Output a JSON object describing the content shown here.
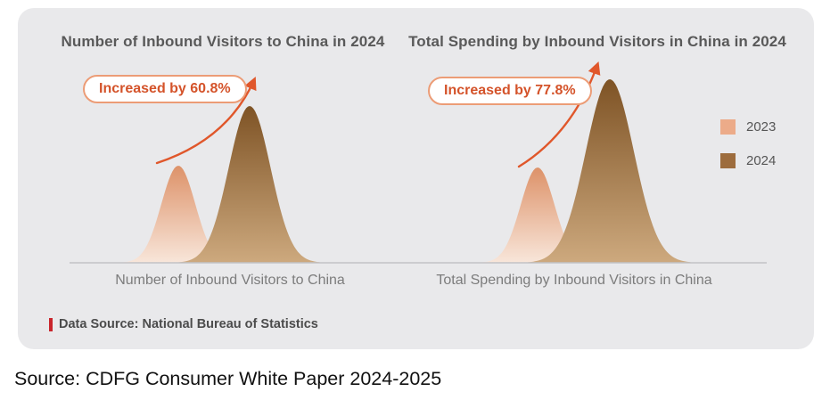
{
  "page": {
    "source_caption": "Source: CDFG Consumer White Paper 2024-2025",
    "data_source_note": "Data Source: National Bureau of Statistics"
  },
  "chart_data": {
    "type": "area",
    "description": "Two peak-shaped area comparisons of 2023 vs 2024 magnitudes; no numeric axes shown, growth given as percentage annotations",
    "grid": false,
    "y_axis": "hidden",
    "panels": [
      {
        "title": "Number of Inbound Visitors to China in 2024",
        "x_axis_label": "Number of Inbound Visitors to China",
        "annotation": "Increased by 60.8%",
        "increase_percent": 60.8,
        "series": [
          {
            "name": "2023",
            "relative_value": 1.0
          },
          {
            "name": "2024",
            "relative_value": 1.608
          }
        ]
      },
      {
        "title": "Total Spending by Inbound Visitors in China in 2024",
        "x_axis_label": "Total Spending by Inbound Visitors in China",
        "annotation": "Increased by 77.8%",
        "increase_percent": 77.8,
        "series": [
          {
            "name": "2023",
            "relative_value": 1.0
          },
          {
            "name": "2024",
            "relative_value": 1.778
          }
        ]
      }
    ],
    "legend": {
      "position": "right",
      "entries": [
        {
          "label": "2023",
          "color": "#ecab89"
        },
        {
          "label": "2024",
          "color": "#9d6c3d"
        }
      ]
    },
    "colors": {
      "card_bg": "#e9e9eb",
      "series_2023_top": "#dd9269",
      "series_2023_bottom": "#f8e6da",
      "series_2024_top": "#7e5325",
      "series_2024_bottom": "#cda97e",
      "arrow": "#e0572b",
      "badge_border": "#ec9c76",
      "badge_text": "#d4532a",
      "axis_line": "#c2c2c6",
      "title_text": "#595959",
      "note_red": "#c9252c"
    }
  }
}
